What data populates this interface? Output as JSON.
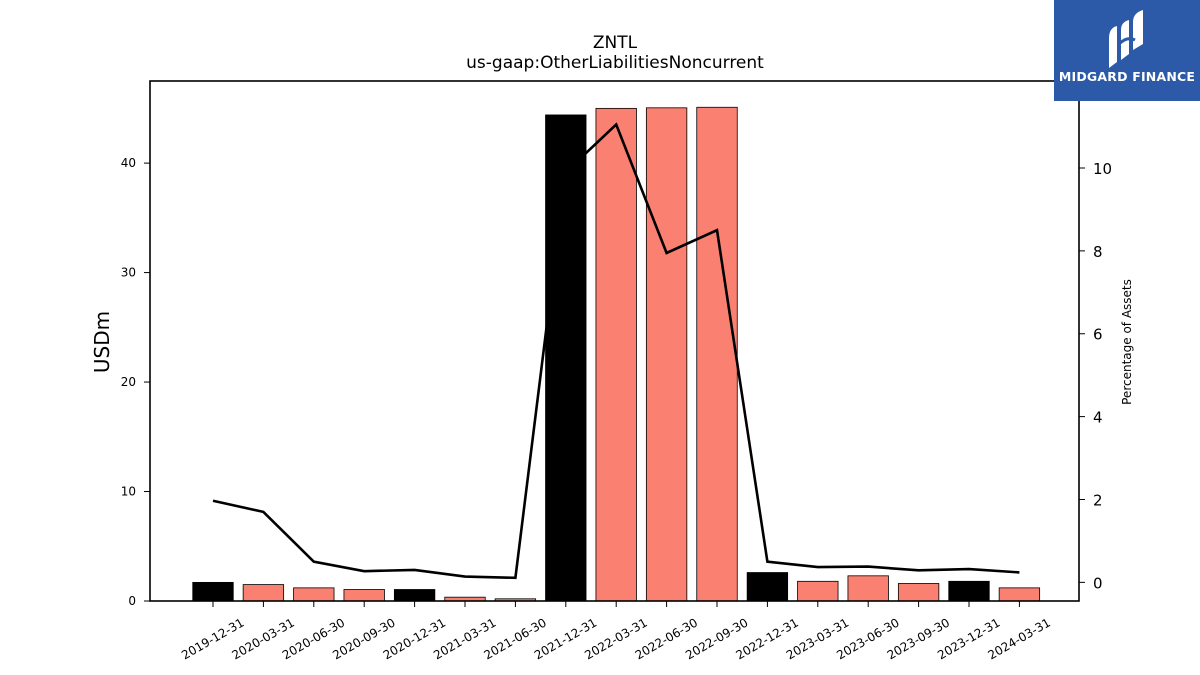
{
  "logo": {
    "brand_text": "MIDGARD FINANCE",
    "background": "#2c5aa8"
  },
  "chart_data": {
    "type": "bar",
    "title": "ZNTL",
    "subtitle": "us-gaap:OtherLiabilitiesNoncurrent",
    "ylabel": "USDm",
    "ylabel_right": "Percentage of Assets",
    "ylim": [
      0,
      47.5
    ],
    "ylim_right": [
      -0.45,
      12.1
    ],
    "yticks": [
      0,
      10,
      20,
      30,
      40
    ],
    "yticks_right": [
      0,
      2,
      4,
      6,
      8,
      10
    ],
    "categories": [
      "2019-12-31",
      "2020-03-31",
      "2020-06-30",
      "2020-09-30",
      "2020-12-31",
      "2021-03-31",
      "2021-06-30",
      "2021-12-31",
      "2022-03-31",
      "2022-06-30",
      "2022-09-30",
      "2022-12-31",
      "2023-03-31",
      "2023-06-30",
      "2023-09-30",
      "2023-12-31",
      "2024-03-31"
    ],
    "series": [
      {
        "axis": "left",
        "kind": "bar",
        "values": [
          1.7,
          1.5,
          1.2,
          1.05,
          1.05,
          0.35,
          0.2,
          44.4,
          45.0,
          45.05,
          45.1,
          2.6,
          1.8,
          2.3,
          1.6,
          1.8,
          1.2
        ],
        "colors": [
          "#000000",
          "#fa8072",
          "#fa8072",
          "#fa8072",
          "#000000",
          "#fa8072",
          "#fa8072",
          "#000000",
          "#fa8072",
          "#fa8072",
          "#fa8072",
          "#000000",
          "#fa8072",
          "#fa8072",
          "#fa8072",
          "#000000",
          "#fa8072"
        ]
      },
      {
        "axis": "right",
        "kind": "line",
        "color": "#000000",
        "values": [
          1.97,
          1.7,
          0.5,
          0.27,
          0.3,
          0.14,
          0.11,
          9.9,
          11.05,
          7.95,
          8.5,
          0.5,
          0.37,
          0.38,
          0.29,
          0.32,
          0.24
        ]
      }
    ],
    "grid": false,
    "legend": "none"
  }
}
